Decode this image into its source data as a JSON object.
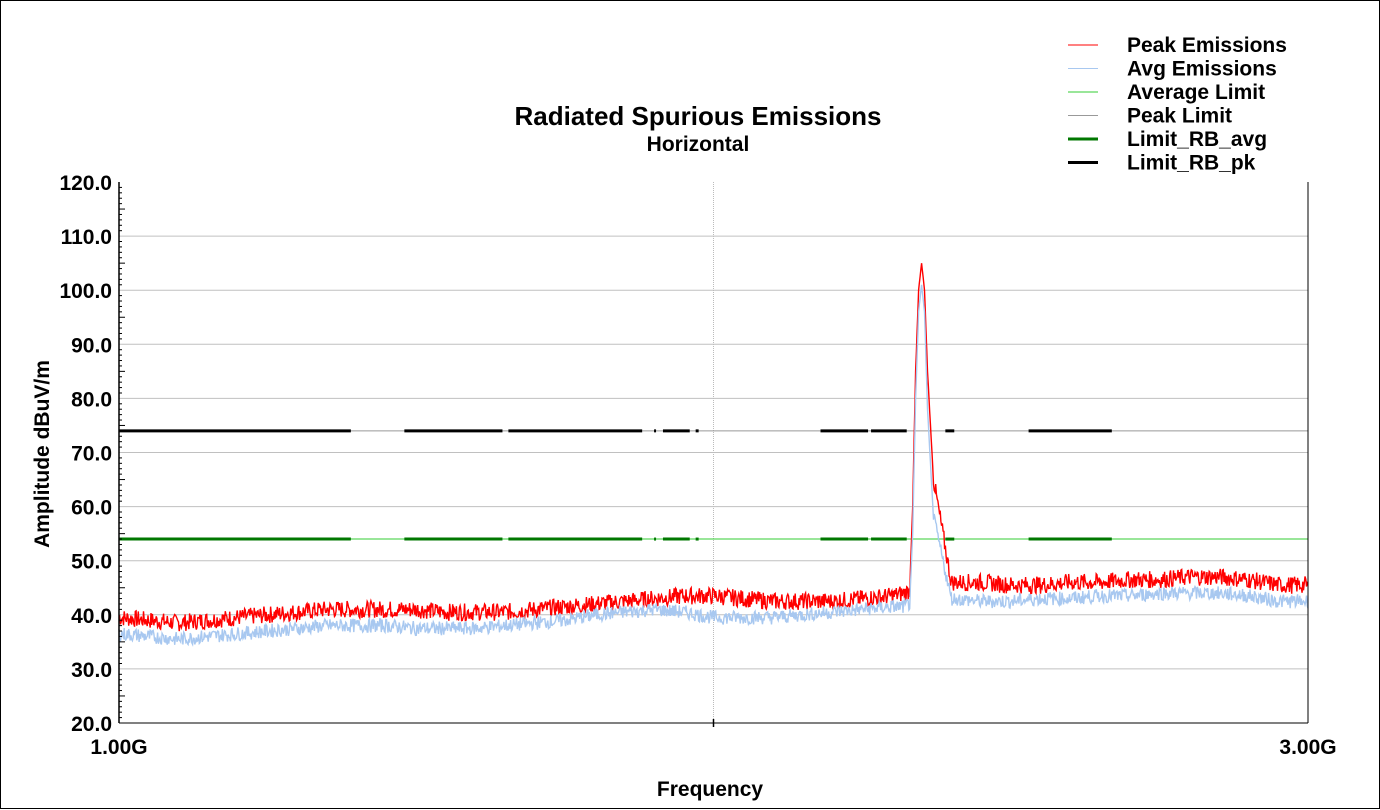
{
  "chart_data": {
    "type": "line",
    "title": "Radiated Spurious Emissions",
    "subtitle": "Horizontal",
    "xlabel": "Frequency",
    "ylabel": "Amplitude dBuV/m",
    "xlim_ghz": [
      1.0,
      3.0
    ],
    "x_tick_labels": [
      "1.00G",
      "3.00G"
    ],
    "ylim": [
      20,
      120
    ],
    "y_ticks": [
      "20.0",
      "30.0",
      "40.0",
      "50.0",
      "60.0",
      "70.0",
      "80.0",
      "90.0",
      "100.0",
      "110.0",
      "120.0"
    ],
    "grid": true,
    "legend_position": "top-right",
    "series": [
      {
        "name": "Peak Emissions",
        "color": "#ff0000",
        "x_ghz": [
          1.0,
          1.05,
          1.1,
          1.15,
          1.2,
          1.25,
          1.3,
          1.35,
          1.4,
          1.45,
          1.5,
          1.55,
          1.6,
          1.65,
          1.7,
          1.75,
          1.8,
          1.85,
          1.9,
          1.95,
          2.0,
          2.05,
          2.1,
          2.15,
          2.2,
          2.25,
          2.3,
          2.32,
          2.33,
          2.335,
          2.34,
          2.345,
          2.35,
          2.355,
          2.36,
          2.37,
          2.4,
          2.45,
          2.5,
          2.55,
          2.6,
          2.65,
          2.7,
          2.75,
          2.8,
          2.85,
          2.9,
          2.95,
          3.0
        ],
        "values": [
          39.5,
          39.0,
          38.5,
          39.0,
          39.5,
          40.0,
          40.5,
          41.0,
          41.0,
          41.0,
          41.0,
          40.5,
          40.5,
          40.5,
          41.0,
          41.5,
          42.0,
          42.5,
          43.0,
          43.5,
          43.5,
          43.0,
          42.5,
          42.5,
          42.5,
          43.0,
          43.5,
          44.0,
          44.5,
          60.0,
          85.0,
          100.0,
          105.0,
          100.0,
          85.0,
          65.0,
          46.0,
          46.0,
          45.5,
          45.5,
          46.0,
          46.0,
          46.5,
          46.5,
          47.0,
          47.0,
          46.5,
          45.5,
          45.5
        ]
      },
      {
        "name": "Avg Emissions",
        "color": "#a8c8f0",
        "x_ghz": [
          1.0,
          1.05,
          1.1,
          1.15,
          1.2,
          1.25,
          1.3,
          1.35,
          1.4,
          1.45,
          1.5,
          1.55,
          1.6,
          1.65,
          1.7,
          1.75,
          1.8,
          1.85,
          1.9,
          1.95,
          2.0,
          2.05,
          2.1,
          2.15,
          2.2,
          2.25,
          2.3,
          2.32,
          2.33,
          2.335,
          2.34,
          2.345,
          2.35,
          2.355,
          2.36,
          2.37,
          2.4,
          2.45,
          2.5,
          2.55,
          2.6,
          2.65,
          2.7,
          2.75,
          2.8,
          2.85,
          2.9,
          2.95,
          3.0
        ],
        "values": [
          36.5,
          36.0,
          35.5,
          36.0,
          36.5,
          37.0,
          37.5,
          38.0,
          38.0,
          38.0,
          37.5,
          37.5,
          37.5,
          38.0,
          38.5,
          39.0,
          40.0,
          40.5,
          41.0,
          40.5,
          39.5,
          39.5,
          39.5,
          40.0,
          40.5,
          41.0,
          41.5,
          41.5,
          42.0,
          55.0,
          80.0,
          96.0,
          101.0,
          96.0,
          78.0,
          58.0,
          43.0,
          42.5,
          42.5,
          43.0,
          43.0,
          43.5,
          43.5,
          44.0,
          44.0,
          44.0,
          43.5,
          42.5,
          42.5
        ]
      },
      {
        "name": "Average Limit",
        "color": "#33cc33",
        "x_ghz": [
          1.0,
          3.0
        ],
        "values": [
          54.0,
          54.0
        ]
      },
      {
        "name": "Peak Limit",
        "color": "#999999",
        "x_ghz": [
          1.0,
          3.0
        ],
        "values": [
          74.0,
          74.0
        ]
      },
      {
        "name": "Limit_RB_avg",
        "color": "#007700",
        "value": 54.0,
        "segments_ghz": [
          [
            1.0,
            1.39
          ],
          [
            1.48,
            1.645
          ],
          [
            1.655,
            1.88
          ],
          [
            1.9,
            1.9
          ],
          [
            1.915,
            1.96
          ],
          [
            1.97,
            1.975
          ],
          [
            2.18,
            2.26
          ],
          [
            2.265,
            2.325
          ],
          [
            2.39,
            2.405
          ],
          [
            2.53,
            2.67
          ]
        ]
      },
      {
        "name": "Limit_RB_pk",
        "color": "#000000",
        "value": 74.0,
        "segments_ghz": [
          [
            1.0,
            1.39
          ],
          [
            1.48,
            1.645
          ],
          [
            1.655,
            1.88
          ],
          [
            1.9,
            1.9
          ],
          [
            1.915,
            1.96
          ],
          [
            1.97,
            1.975
          ],
          [
            2.18,
            2.26
          ],
          [
            2.265,
            2.325
          ],
          [
            2.39,
            2.405
          ],
          [
            2.53,
            2.67
          ]
        ]
      }
    ]
  }
}
